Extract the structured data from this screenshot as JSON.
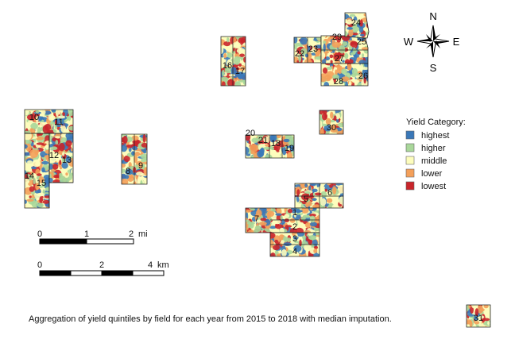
{
  "caption": "Aggregation of yield quintiles by field for each year from 2015 to 2018 with median imputation.",
  "legend": {
    "title": "Yield Category:",
    "items": [
      {
        "label": "highest",
        "color": "#3a78b8"
      },
      {
        "label": "higher",
        "color": "#a9d79a"
      },
      {
        "label": "middle",
        "color": "#fdfdbd"
      },
      {
        "label": "lower",
        "color": "#f4a05a"
      },
      {
        "label": "lowest",
        "color": "#c9252b"
      }
    ]
  },
  "compass": {
    "n": "N",
    "s": "S",
    "e": "E",
    "w": "W"
  },
  "scale_miles": {
    "ticks": [
      "0",
      "1",
      "2"
    ],
    "unit": "mi"
  },
  "scale_km": {
    "ticks": [
      "0",
      "2",
      "4"
    ],
    "unit": "km"
  },
  "field_labels": [
    "1",
    "2",
    "3",
    "4",
    "5",
    "6",
    "7",
    "8",
    "9",
    "10",
    "11",
    "12",
    "13",
    "14",
    "15",
    "16",
    "17",
    "18",
    "19",
    "20",
    "21",
    "22",
    "23",
    "24",
    "25",
    "26",
    "27",
    "28",
    "29",
    "30",
    "31"
  ]
}
